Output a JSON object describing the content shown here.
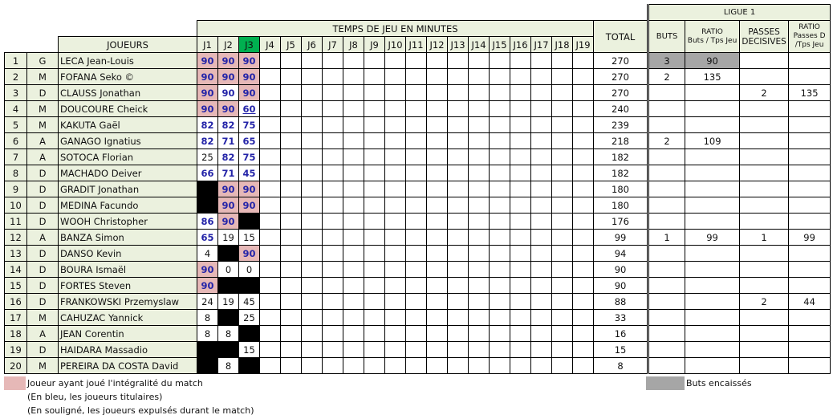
{
  "header": {
    "ligue": "LIGUE 1",
    "temps": "TEMPS DE JEU EN MINUTES",
    "joueurs": "JOUEURS",
    "total": "TOTAL",
    "buts": "BUTS",
    "ratio_buts": "RATIO",
    "ratio_buts_sub": "Buts / Tps Jeu",
    "passes": "PASSES DECISIVES",
    "ratio_passes": "RATIO",
    "ratio_passes_sub": "Passes D /Tps Jeu",
    "rounds": [
      "J1",
      "J2",
      "J3",
      "J4",
      "J5",
      "J6",
      "J7",
      "J8",
      "J9",
      "J10",
      "J11",
      "J12",
      "J13",
      "J14",
      "J15",
      "J16",
      "J17",
      "J18",
      "J19"
    ]
  },
  "colors": {
    "full_match": "#e6b8b7",
    "starter_text": "#2424a8",
    "current_round": "#00b050",
    "header_bg": "#ebf1de",
    "goals_conceded": "#a6a6a6",
    "not_played": "#000000"
  },
  "rows": [
    {
      "n": "1",
      "pos": "G",
      "name": "LECA Jean-Louis",
      "m": [
        [
          "90",
          "full"
        ],
        [
          "90",
          "full"
        ],
        [
          "90",
          "full"
        ]
      ],
      "total": "270",
      "buts": "3",
      "ratio": "90",
      "passes": "",
      "rp": "",
      "gk": true
    },
    {
      "n": "2",
      "pos": "M",
      "name": "FOFANA Seko ©",
      "m": [
        [
          "90",
          "full"
        ],
        [
          "90",
          "full"
        ],
        [
          "90",
          "full"
        ]
      ],
      "total": "270",
      "buts": "2",
      "ratio": "135",
      "passes": "",
      "rp": ""
    },
    {
      "n": "3",
      "pos": "D",
      "name": "CLAUSS Jonathan",
      "m": [
        [
          "90",
          "full"
        ],
        [
          "90",
          "start"
        ],
        [
          "90",
          "full"
        ]
      ],
      "total": "270",
      "buts": "",
      "ratio": "",
      "passes": "2",
      "rp": "135"
    },
    {
      "n": "4",
      "pos": "M",
      "name": "DOUCOURE Cheick",
      "m": [
        [
          "90",
          "full"
        ],
        [
          "90",
          "full"
        ],
        [
          "60",
          "start u"
        ]
      ],
      "total": "240",
      "buts": "",
      "ratio": "",
      "passes": "",
      "rp": ""
    },
    {
      "n": "5",
      "pos": "M",
      "name": "KAKUTA Gaël",
      "m": [
        [
          "82",
          "start"
        ],
        [
          "82",
          "start"
        ],
        [
          "75",
          "start"
        ]
      ],
      "total": "239",
      "buts": "",
      "ratio": "",
      "passes": "",
      "rp": ""
    },
    {
      "n": "6",
      "pos": "A",
      "name": "GANAGO Ignatius",
      "m": [
        [
          "82",
          "start"
        ],
        [
          "71",
          "start"
        ],
        [
          "65",
          "start"
        ]
      ],
      "total": "218",
      "buts": "2",
      "ratio": "109",
      "passes": "",
      "rp": ""
    },
    {
      "n": "7",
      "pos": "A",
      "name": "SOTOCA Florian",
      "m": [
        [
          "25",
          "sub"
        ],
        [
          "82",
          "start"
        ],
        [
          "75",
          "start"
        ]
      ],
      "total": "182",
      "buts": "",
      "ratio": "",
      "passes": "",
      "rp": ""
    },
    {
      "n": "8",
      "pos": "D",
      "name": "MACHADO Deiver",
      "m": [
        [
          "66",
          "start"
        ],
        [
          "71",
          "start"
        ],
        [
          "45",
          "start"
        ]
      ],
      "total": "182",
      "buts": "",
      "ratio": "",
      "passes": "",
      "rp": ""
    },
    {
      "n": "9",
      "pos": "D",
      "name": "GRADIT Jonathan",
      "m": [
        [
          "",
          "none"
        ],
        [
          "90",
          "full"
        ],
        [
          "90",
          "full"
        ]
      ],
      "total": "180",
      "buts": "",
      "ratio": "",
      "passes": "",
      "rp": ""
    },
    {
      "n": "10",
      "pos": "D",
      "name": "MEDINA Facundo",
      "m": [
        [
          "",
          "none"
        ],
        [
          "90",
          "full"
        ],
        [
          "90",
          "full"
        ]
      ],
      "total": "180",
      "buts": "",
      "ratio": "",
      "passes": "",
      "rp": ""
    },
    {
      "n": "11",
      "pos": "D",
      "name": "WOOH Christopher",
      "m": [
        [
          "86",
          "start"
        ],
        [
          "90",
          "full"
        ],
        [
          "",
          "none"
        ]
      ],
      "total": "176",
      "buts": "",
      "ratio": "",
      "passes": "",
      "rp": ""
    },
    {
      "n": "12",
      "pos": "A",
      "name": "BANZA Simon",
      "m": [
        [
          "65",
          "start"
        ],
        [
          "19",
          "sub"
        ],
        [
          "15",
          "sub"
        ]
      ],
      "total": "99",
      "buts": "1",
      "ratio": "99",
      "passes": "1",
      "rp": "99"
    },
    {
      "n": "13",
      "pos": "D",
      "name": "DANSO Kevin",
      "m": [
        [
          "4",
          "sub"
        ],
        [
          "",
          "none"
        ],
        [
          "90",
          "full"
        ]
      ],
      "total": "94",
      "buts": "",
      "ratio": "",
      "passes": "",
      "rp": ""
    },
    {
      "n": "14",
      "pos": "D",
      "name": "BOURA Ismaël",
      "m": [
        [
          "90",
          "full"
        ],
        [
          "0",
          "sub"
        ],
        [
          "0",
          "sub"
        ]
      ],
      "total": "90",
      "buts": "",
      "ratio": "",
      "passes": "",
      "rp": ""
    },
    {
      "n": "15",
      "pos": "D",
      "name": "FORTES Steven",
      "m": [
        [
          "90",
          "full"
        ],
        [
          "",
          "none"
        ],
        [
          "",
          "none"
        ]
      ],
      "total": "90",
      "buts": "",
      "ratio": "",
      "passes": "",
      "rp": ""
    },
    {
      "n": "16",
      "pos": "D",
      "name": "FRANKOWSKI Przemyslaw",
      "m": [
        [
          "24",
          "sub"
        ],
        [
          "19",
          "sub"
        ],
        [
          "45",
          "sub"
        ]
      ],
      "total": "88",
      "buts": "",
      "ratio": "",
      "passes": "2",
      "rp": "44"
    },
    {
      "n": "17",
      "pos": "M",
      "name": "CAHUZAC Yannick",
      "m": [
        [
          "8",
          "sub"
        ],
        [
          "",
          "none"
        ],
        [
          "25",
          "sub"
        ]
      ],
      "total": "33",
      "buts": "",
      "ratio": "",
      "passes": "",
      "rp": ""
    },
    {
      "n": "18",
      "pos": "A",
      "name": "JEAN Corentin",
      "m": [
        [
          "8",
          "sub"
        ],
        [
          "8",
          "sub"
        ],
        [
          "",
          "none"
        ]
      ],
      "total": "16",
      "buts": "",
      "ratio": "",
      "passes": "",
      "rp": ""
    },
    {
      "n": "19",
      "pos": "D",
      "name": "HAIDARA Massadio",
      "m": [
        [
          "",
          "none"
        ],
        [
          "",
          "none"
        ],
        [
          "15",
          "sub"
        ]
      ],
      "total": "15",
      "buts": "",
      "ratio": "",
      "passes": "",
      "rp": ""
    },
    {
      "n": "20",
      "pos": "M",
      "name": "PEREIRA DA COSTA David",
      "m": [
        [
          "",
          "none"
        ],
        [
          "8",
          "sub"
        ],
        [
          "",
          "none"
        ]
      ],
      "total": "8",
      "buts": "",
      "ratio": "",
      "passes": "",
      "rp": ""
    }
  ],
  "legend": {
    "full": "Joueur ayant joué l'intégralité du match",
    "blue": "(En bleu, les joueurs titulaires)",
    "underline": "(En souligné, les joueurs expulsés durant le match)",
    "conceded": "Buts encaissés"
  }
}
